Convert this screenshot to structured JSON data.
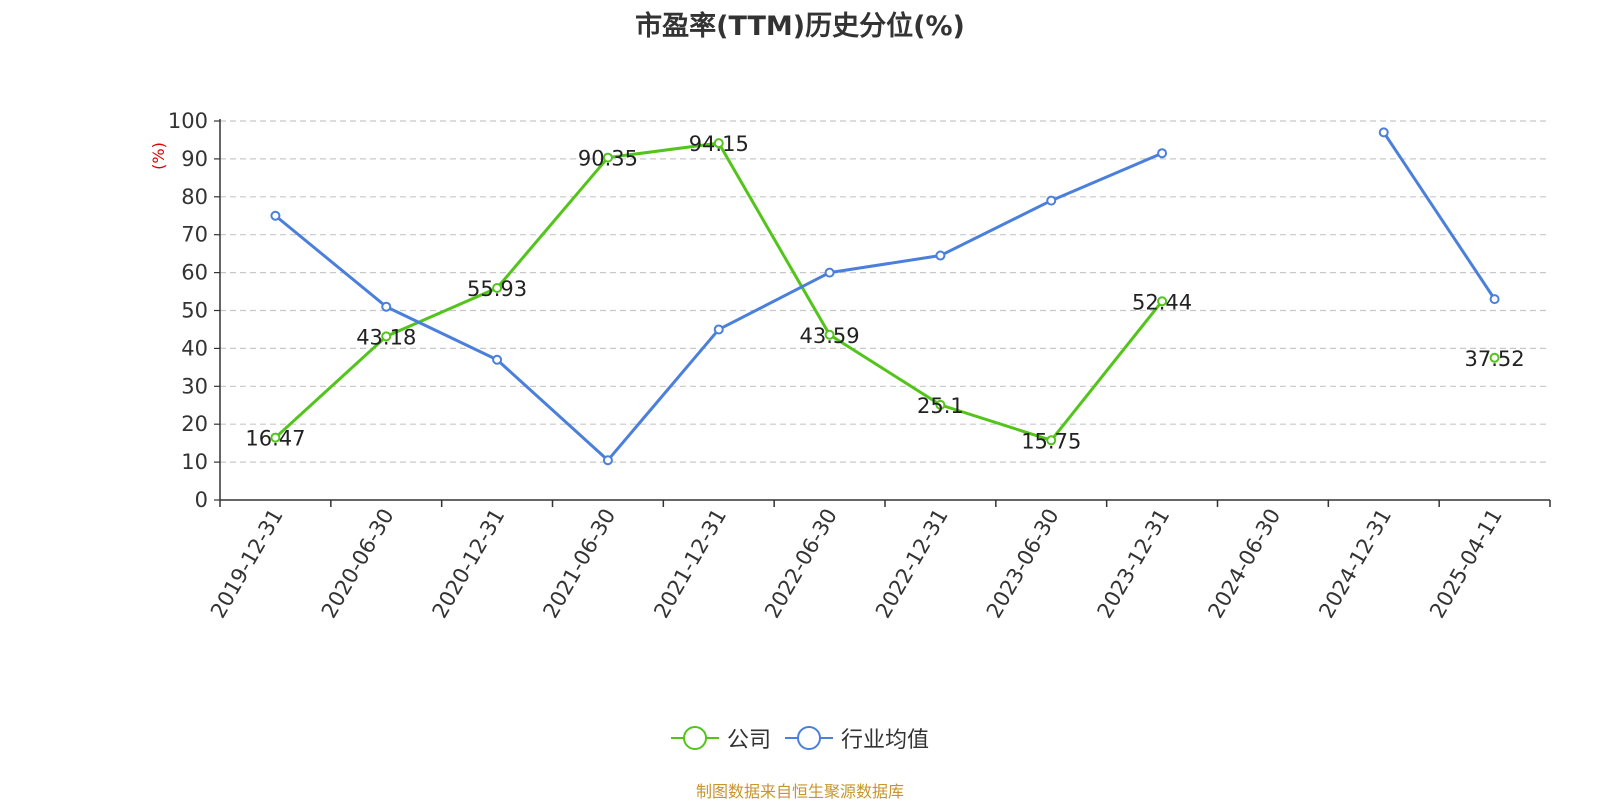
{
  "chart_data": {
    "type": "line",
    "title": "市盈率(TTM)历史分位(%)",
    "ylabel": "(%)",
    "ylim": [
      0,
      100
    ],
    "yticks": [
      0,
      10,
      20,
      30,
      40,
      50,
      60,
      70,
      80,
      90,
      100
    ],
    "categories": [
      "2019-12-31",
      "2020-06-30",
      "2020-12-31",
      "2021-06-30",
      "2021-12-31",
      "2022-06-30",
      "2022-12-31",
      "2023-06-30",
      "2023-12-31",
      "2024-06-30",
      "2024-12-31",
      "2025-04-11"
    ],
    "grid": true,
    "legend_position": "bottom",
    "series": [
      {
        "name": "公司",
        "color": "#52c41a",
        "values": [
          16.47,
          43.18,
          55.93,
          90.35,
          94.15,
          43.59,
          25.1,
          15.75,
          52.44,
          null,
          null,
          37.52
        ],
        "labels": [
          "16.47",
          "43.18",
          "55.93",
          "90.35",
          "94.15",
          "43.59",
          "25.1",
          "15.75",
          "52.44",
          "",
          "",
          "37.52"
        ]
      },
      {
        "name": "行业均值",
        "color": "#4a7fdb",
        "values": [
          75,
          51,
          37,
          10.5,
          45,
          60,
          64.5,
          79,
          91.5,
          null,
          97,
          53
        ]
      }
    ]
  },
  "legend": {
    "company": "公司",
    "industry": "行业均值"
  },
  "source": "制图数据来自恒生聚源数据库"
}
